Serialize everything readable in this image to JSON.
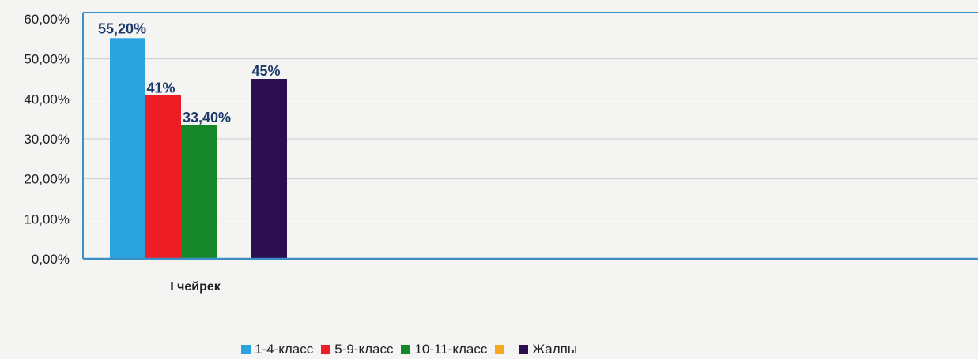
{
  "chart_data": {
    "type": "bar",
    "categories": [
      "I чейрек"
    ],
    "y_ticks": [
      "0,00%",
      "10,00%",
      "20,00%",
      "30,00%",
      "40,00%",
      "50,00%",
      "60,00%"
    ],
    "ylim": [
      0,
      60
    ],
    "grid": true,
    "legend_position": "bottom",
    "series": [
      {
        "name": "1-4-класс",
        "values": [
          55.2
        ],
        "label": "55,20%",
        "color": "#2aa3df"
      },
      {
        "name": "5-9-класс",
        "values": [
          41
        ],
        "label": "41%",
        "color": "#ee1c24"
      },
      {
        "name": "10-11-класс",
        "values": [
          33.4
        ],
        "label": "33,40%",
        "color": "#17882a"
      },
      {
        "name": "",
        "values": [
          null
        ],
        "label": "",
        "color": "#f7a823"
      },
      {
        "name": "Жалпы",
        "values": [
          45
        ],
        "label": "45%",
        "color": "#2b0f4e"
      }
    ]
  }
}
